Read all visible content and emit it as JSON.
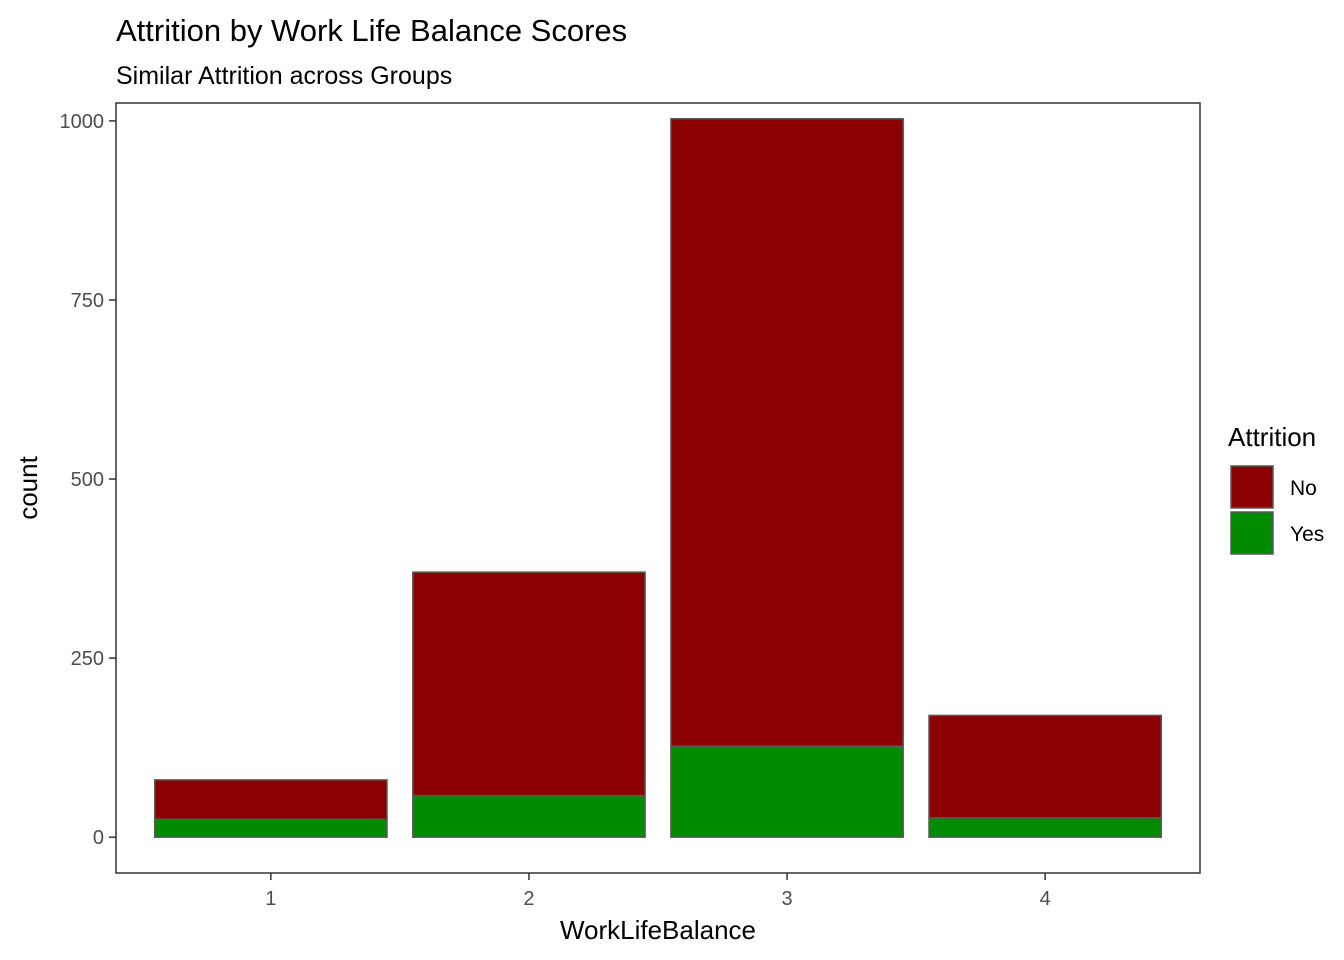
{
  "chart_data": {
    "type": "bar",
    "stacked": true,
    "title": "Attrition by Work Life Balance Scores",
    "subtitle": "Similar Attrition across Groups",
    "xlabel": "WorkLifeBalance",
    "ylabel": "count",
    "categories": [
      "1",
      "2",
      "3",
      "4"
    ],
    "series": [
      {
        "name": "No",
        "color": "#8B0000",
        "values": [
          55,
          312,
          876,
          143
        ]
      },
      {
        "name": "Yes",
        "color": "#008B00",
        "values": [
          25,
          58,
          127,
          27
        ]
      }
    ],
    "ylim": [
      -50,
      1025
    ],
    "yticks": [
      0,
      250,
      500,
      750,
      1000
    ],
    "ytick_labels": [
      "0",
      "250",
      "500",
      "750",
      "1000"
    ],
    "legend": {
      "title": "Attrition",
      "position": "right"
    },
    "grid": false,
    "bar_edge_color": "#595959"
  }
}
